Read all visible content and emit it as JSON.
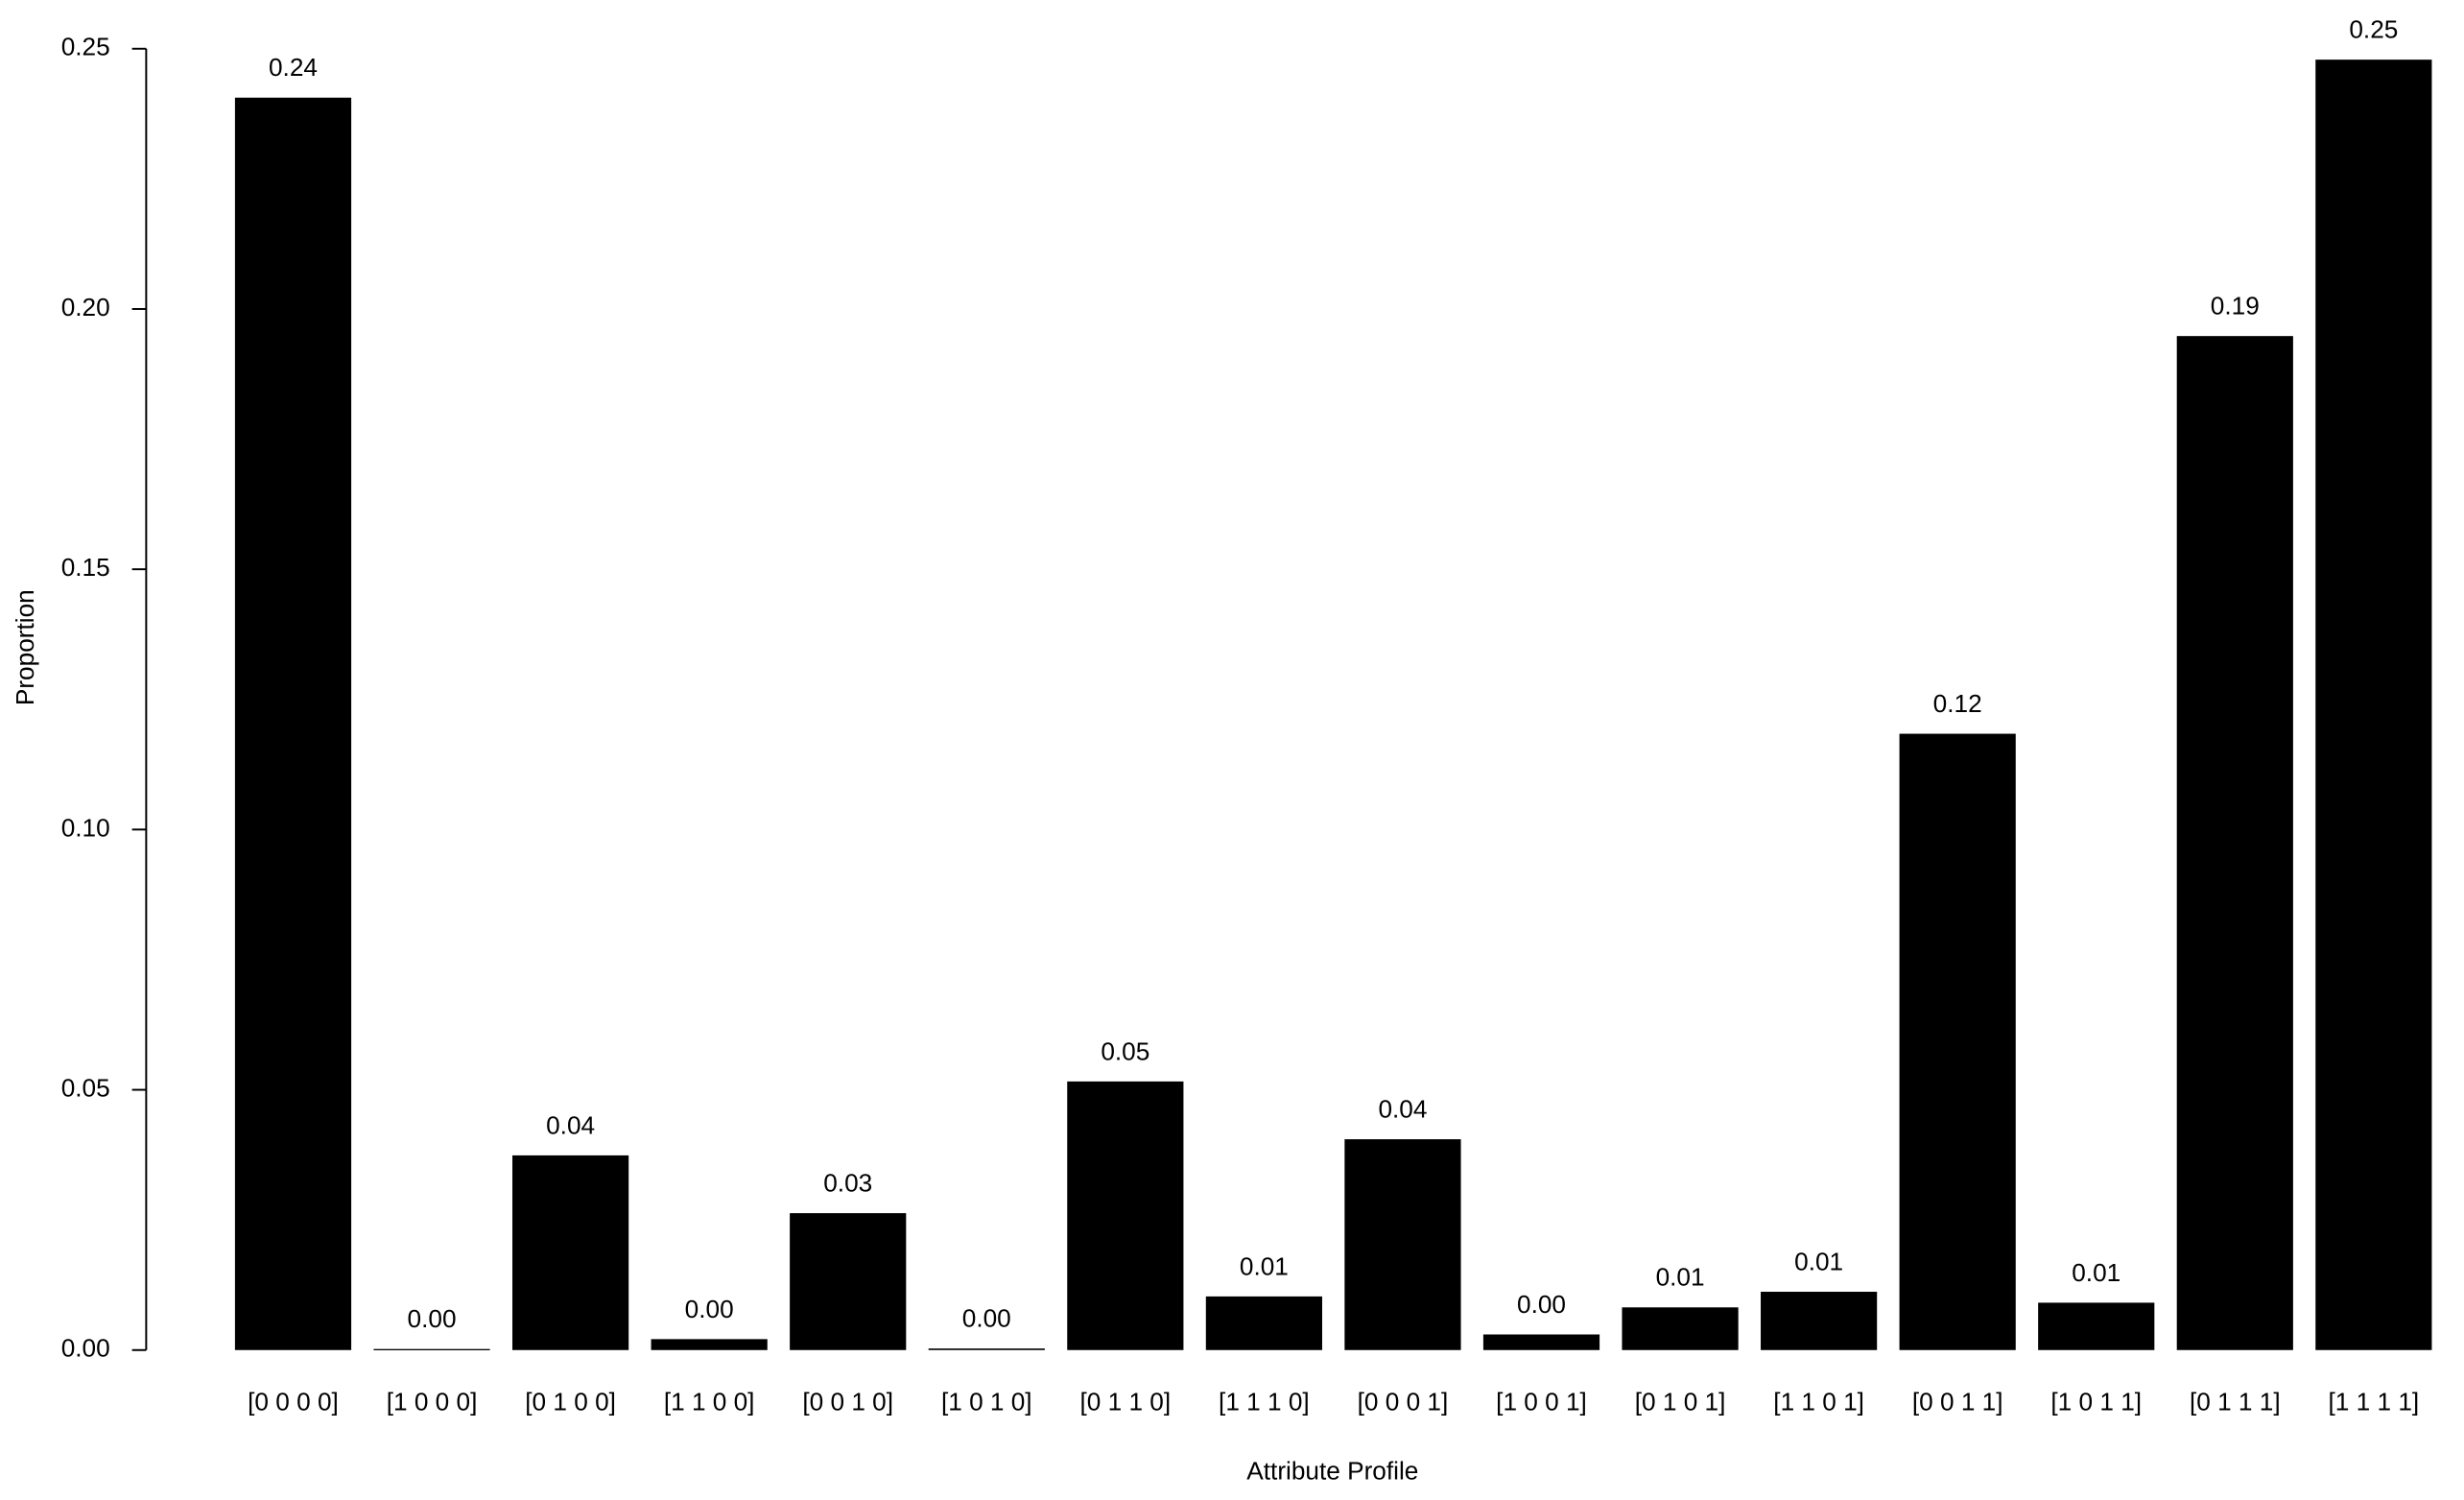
{
  "chart_data": {
    "type": "bar",
    "x_label": "Attribute Profile",
    "y_label": "Proportion",
    "categories": [
      "[0 0 0 0]",
      "[1 0 0 0]",
      "[0 1 0 0]",
      "[1 1 0 0]",
      "[0 0 1 0]",
      "[1 0 1 0]",
      "[0 1 1 0]",
      "[1 1 1 0]",
      "[0 0 0 1]",
      "[1 0 0 1]",
      "[0 1 0 1]",
      "[1 1 0 1]",
      "[0 0 1 1]",
      "[1 0 1 1]",
      "[0 1 1 1]",
      "[1 1 1 1]"
    ],
    "values": [
      0.2406,
      0.0002,
      0.0374,
      0.0021,
      0.0263,
      0.0003,
      0.0516,
      0.0103,
      0.0405,
      0.003,
      0.0082,
      0.0112,
      0.1184,
      0.0091,
      0.1948,
      0.2479
    ],
    "value_labels": [
      "0.24",
      "0.00",
      "0.04",
      "0.00",
      "0.03",
      "0.00",
      "0.05",
      "0.01",
      "0.04",
      "0.00",
      "0.01",
      "0.01",
      "0.12",
      "0.01",
      "0.19",
      "0.25"
    ],
    "color": "#000000",
    "ylim": [
      0,
      0.25
    ],
    "yticks": [
      {
        "value": 0,
        "label": "0.00"
      },
      0.05,
      {
        "value": 0.1,
        "label": "0.10"
      },
      0.15,
      {
        "value": 0.2,
        "label": "0.20"
      },
      0.25
    ],
    "grid": false
  }
}
